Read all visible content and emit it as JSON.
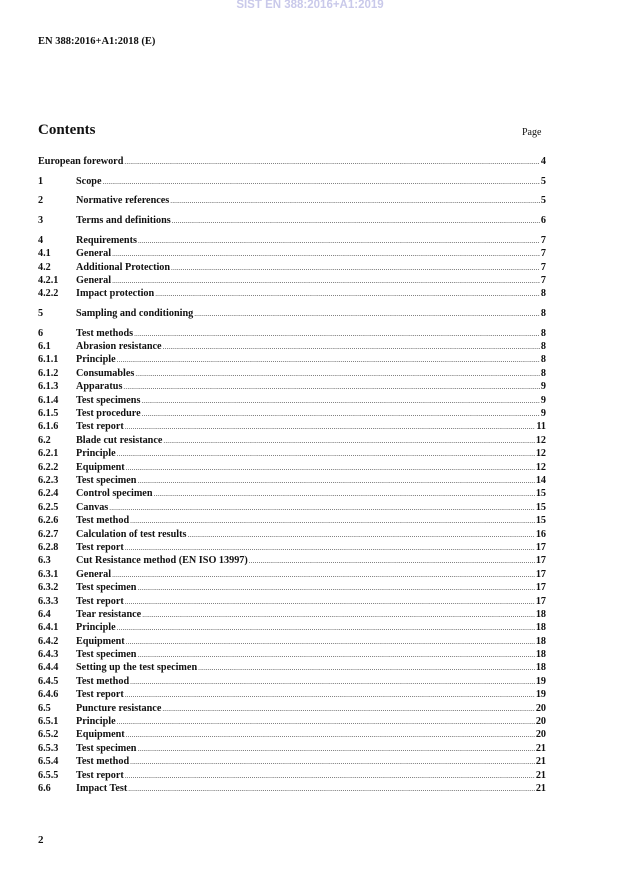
{
  "watermark": "SIST EN 388:2016+A1:2019",
  "header": {
    "doc_id": "EN 388:2016+A1:2018 (E)"
  },
  "contents": {
    "title": "Contents",
    "page_label": "Page",
    "entries": [
      {
        "num": "",
        "title": "European foreword",
        "page": "4"
      },
      {
        "num": "1",
        "title": "Scope",
        "page": "5"
      },
      {
        "num": "2",
        "title": "Normative references",
        "page": "5"
      },
      {
        "num": "3",
        "title": "Terms and definitions",
        "page": "6"
      },
      {
        "num": "4",
        "title": "Requirements",
        "page": "7"
      },
      {
        "num": "4.1",
        "title": "General",
        "page": "7"
      },
      {
        "num": "4.2",
        "title": "Additional Protection",
        "page": "7"
      },
      {
        "num": "4.2.1",
        "title": "General",
        "page": "7"
      },
      {
        "num": "4.2.2",
        "title": "Impact protection",
        "page": "8"
      },
      {
        "num": "5",
        "title": "Sampling and conditioning",
        "page": "8"
      },
      {
        "num": "6",
        "title": "Test methods",
        "page": "8"
      },
      {
        "num": "6.1",
        "title": "Abrasion resistance",
        "page": "8"
      },
      {
        "num": "6.1.1",
        "title": "Principle",
        "page": "8"
      },
      {
        "num": "6.1.2",
        "title": "Consumables",
        "page": "8"
      },
      {
        "num": "6.1.3",
        "title": "Apparatus",
        "page": "9"
      },
      {
        "num": "6.1.4",
        "title": "Test specimens",
        "page": "9"
      },
      {
        "num": "6.1.5",
        "title": "Test procedure",
        "page": "9"
      },
      {
        "num": "6.1.6",
        "title": "Test report",
        "page": "11"
      },
      {
        "num": "6.2",
        "title": "Blade cut resistance",
        "page": "12"
      },
      {
        "num": "6.2.1",
        "title": "Principle",
        "page": "12"
      },
      {
        "num": "6.2.2",
        "title": "Equipment",
        "page": "12"
      },
      {
        "num": "6.2.3",
        "title": "Test specimen",
        "page": "14"
      },
      {
        "num": "6.2.4",
        "title": "Control specimen",
        "page": "15"
      },
      {
        "num": "6.2.5",
        "title": "Canvas",
        "page": "15"
      },
      {
        "num": "6.2.6",
        "title": "Test method",
        "page": "15"
      },
      {
        "num": "6.2.7",
        "title": "Calculation of test results",
        "page": "16"
      },
      {
        "num": "6.2.8",
        "title": "Test report",
        "page": "17"
      },
      {
        "num": "6.3",
        "title": "Cut Resistance method (EN ISO 13997)",
        "page": "17"
      },
      {
        "num": "6.3.1",
        "title": "General",
        "page": "17"
      },
      {
        "num": "6.3.2",
        "title": "Test specimen",
        "page": "17"
      },
      {
        "num": "6.3.3",
        "title": "Test report",
        "page": "17"
      },
      {
        "num": "6.4",
        "title": "Tear resistance",
        "page": "18"
      },
      {
        "num": "6.4.1",
        "title": "Principle",
        "page": "18"
      },
      {
        "num": "6.4.2",
        "title": "Equipment",
        "page": "18"
      },
      {
        "num": "6.4.3",
        "title": "Test specimen",
        "page": "18"
      },
      {
        "num": "6.4.4",
        "title": "Setting up the test specimen",
        "page": "18"
      },
      {
        "num": "6.4.5",
        "title": "Test method",
        "page": "19"
      },
      {
        "num": "6.4.6",
        "title": "Test report",
        "page": "19"
      },
      {
        "num": "6.5",
        "title": "Puncture resistance",
        "page": "20"
      },
      {
        "num": "6.5.1",
        "title": "Principle",
        "page": "20"
      },
      {
        "num": "6.5.2",
        "title": "Equipment",
        "page": "20"
      },
      {
        "num": "6.5.3",
        "title": "Test specimen",
        "page": "21"
      },
      {
        "num": "6.5.4",
        "title": "Test method",
        "page": "21"
      },
      {
        "num": "6.5.5",
        "title": "Test report",
        "page": "21"
      },
      {
        "num": "6.6",
        "title": "Impact Test",
        "page": "21"
      }
    ]
  },
  "footer": {
    "page_number": "2"
  },
  "colors": {
    "watermark": "#c9c9ea",
    "text": "#111111"
  }
}
